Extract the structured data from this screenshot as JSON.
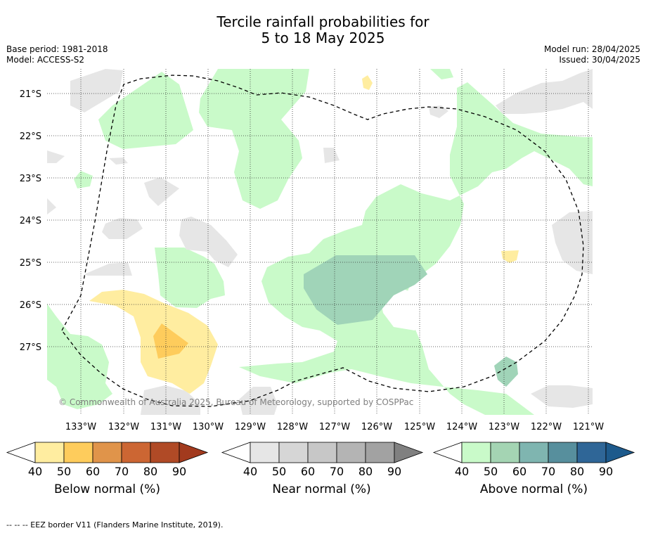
{
  "title_line1": "Tercile rainfall probabilities for",
  "title_line2": "5 to 18 May 2025",
  "base_period": "Base period: 1981-2018",
  "model": "Model: ACCESS-S2",
  "model_run": "Model run: 28/04/2025",
  "issued": "Issued: 30/04/2025",
  "copyright": "© Commonwealth of Australia 2025, Bureau of Meteorology, supported by COSPPac",
  "footer": "--  --  -- EEZ border V11 (Flanders Marine Institute, 2019).",
  "map": {
    "lat_labels": [
      "21°S",
      "22°S",
      "23°S",
      "24°S",
      "25°S",
      "26°S",
      "27°S"
    ],
    "lon_labels": [
      "133°W",
      "132°W",
      "131°W",
      "130°W",
      "129°W",
      "128°W",
      "127°W",
      "126°W",
      "125°W",
      "124°W",
      "123°W",
      "122°W",
      "121°W"
    ],
    "gridlines": "dotted"
  },
  "colorbars": [
    {
      "title": "Below normal (%)",
      "ticks": [
        "40",
        "50",
        "60",
        "70",
        "80",
        "90"
      ],
      "colors": [
        "#ffeda0",
        "#fecc5c",
        "#e0944a",
        "#cc6633",
        "#b04a26",
        "#a23a1e"
      ]
    },
    {
      "title": "Near normal (%)",
      "ticks": [
        "40",
        "50",
        "60",
        "70",
        "80",
        "90"
      ],
      "colors": [
        "#e6e6e6",
        "#d6d6d6",
        "#c7c7c7",
        "#b4b4b4",
        "#a2a2a2",
        "#808080"
      ]
    },
    {
      "title": "Above normal (%)",
      "ticks": [
        "40",
        "50",
        "60",
        "70",
        "80",
        "90"
      ],
      "colors": [
        "#c9fac9",
        "#a4d4b3",
        "#7fb5b0",
        "#578f9d",
        "#2f6697",
        "#1d5a8c"
      ]
    }
  ]
}
